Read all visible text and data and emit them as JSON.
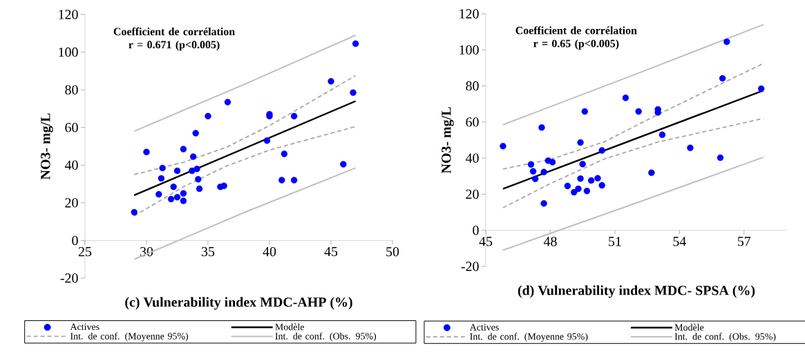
{
  "chart_data": [
    {
      "type": "scatter",
      "xlabel": "(c) Vulnerability index MDC-AHP (%)",
      "ylabel": "NO3- mg/L",
      "xlim": [
        25,
        50
      ],
      "xticks": [
        25,
        30,
        35,
        40,
        45,
        50
      ],
      "ylim": [
        -20,
        120
      ],
      "yticks": [
        -20,
        0,
        20,
        40,
        60,
        80,
        100,
        120
      ],
      "legend": "bottom",
      "annotations": [
        "**Coefficient de corrélation r = 0.671 (p<0.005)**"
      ],
      "series": [
        {
          "name": "Actives",
          "type": "scatter",
          "marker": "circle",
          "color": "#0000ff",
          "x": [
            29,
            30,
            31,
            31.2,
            31.3,
            32,
            32.2,
            32.5,
            32.5,
            33,
            33,
            33,
            33.7,
            33.8,
            34,
            34.1,
            34.2,
            34.3,
            35,
            36,
            36.3,
            36.6,
            39.8,
            40,
            40,
            41,
            41.2,
            42,
            42,
            45,
            46,
            46.8,
            47
          ],
          "values": [
            15,
            47,
            24.5,
            33,
            38.5,
            22,
            28.5,
            23,
            37,
            25,
            21,
            48.5,
            37,
            44.5,
            57,
            38,
            32.5,
            27.5,
            66,
            28.5,
            29,
            73.5,
            53,
            67,
            66,
            32,
            46,
            66,
            32,
            84.5,
            40.5,
            78.5,
            104.5
          ]
        },
        {
          "name": "Modèle",
          "type": "line",
          "marker": "none",
          "line_style": "solid",
          "color": "#000000",
          "x": [
            29,
            47
          ],
          "values": [
            24,
            74
          ]
        },
        {
          "name": "Int. de conf. (Moyenne 95%)",
          "type": "line",
          "marker": "none",
          "line_style": "dashed",
          "color": "#a6a6a6",
          "x": [
            29,
            33,
            36.5,
            40,
            47
          ],
          "values": [
            35,
            41.5,
            49.5,
            61,
            87.5
          ]
        },
        {
          "type": "line",
          "marker": "none",
          "line_style": "dashed",
          "color": "#a6a6a6",
          "x": [
            29,
            33,
            36.5,
            40,
            47
          ],
          "values": [
            13,
            28.5,
            39.5,
            48,
            60.5
          ]
        },
        {
          "name": "Int. de conf. (Obs. 95%)",
          "type": "line",
          "marker": "none",
          "line_style": "solid",
          "color": "#bfbfbf",
          "x": [
            29,
            38,
            47
          ],
          "values": [
            58,
            83,
            109
          ]
        },
        {
          "type": "line",
          "marker": "none",
          "line_style": "solid",
          "color": "#bfbfbf",
          "x": [
            29,
            38,
            47
          ],
          "values": [
            -10,
            15,
            38.5
          ]
        }
      ]
    },
    {
      "type": "scatter",
      "xlabel": "(d) Vulnerability index MDC- SPSA (%)",
      "ylabel": "NO3- mg/L",
      "xlim": [
        45,
        59
      ],
      "xticks": [
        45,
        48,
        51,
        54,
        57
      ],
      "ylim": [
        -20,
        120
      ],
      "yticks": [
        -20,
        0,
        20,
        40,
        60,
        80,
        100,
        120
      ],
      "legend": "bottom",
      "annotations": [
        "**Coefficient de corrélation r = 0.65 (p<0.005)**"
      ],
      "series": [
        {
          "name": "Actives",
          "type": "scatter",
          "marker": "circle",
          "color": "#0000ff",
          "x": [
            45.8,
            47.6,
            56.2,
            56,
            57.8,
            51.5,
            52.1,
            53,
            53,
            49.6,
            53.2,
            49.4,
            54.5,
            50.4,
            55.9,
            47.1,
            47.9,
            48.1,
            49.5,
            47.2,
            47.7,
            47.3,
            49.4,
            49.9,
            50.2,
            52.7,
            48.8,
            49.1,
            49.3,
            49.7,
            50.4,
            47.7
          ],
          "values": [
            46.7,
            57,
            104.5,
            84.2,
            78.5,
            73.4,
            65.9,
            67,
            65.3,
            65.9,
            53,
            48.7,
            45.7,
            44.3,
            40.2,
            36.5,
            38.6,
            37.8,
            36.7,
            32.7,
            32.3,
            28.5,
            28.7,
            27.6,
            28.9,
            31.9,
            24.6,
            21.1,
            23,
            21.8,
            24.9,
            14.9
          ]
        },
        {
          "name": "Modèle",
          "type": "line",
          "marker": "none",
          "line_style": "solid",
          "color": "#000000",
          "x": [
            45.8,
            57.9
          ],
          "values": [
            23,
            77.5
          ]
        },
        {
          "name": "Int. de conf. (Moyenne 95%)",
          "type": "line",
          "marker": "none",
          "line_style": "dashed",
          "color": "#a6a6a6",
          "x": [
            45.8,
            48,
            50.5,
            53,
            57.9
          ],
          "values": [
            34,
            39.3,
            49,
            64.2,
            92.5
          ]
        },
        {
          "type": "line",
          "marker": "none",
          "line_style": "dashed",
          "color": "#a6a6a6",
          "x": [
            45.8,
            48,
            50.5,
            53,
            57.9
          ],
          "values": [
            12.5,
            25.9,
            39.5,
            48.9,
            62
          ]
        },
        {
          "name": "Int. de conf. (Obs. 95%)",
          "type": "line",
          "marker": "none",
          "line_style": "solid",
          "color": "#bfbfbf",
          "x": [
            45.8,
            51.85,
            57.9
          ],
          "values": [
            58.5,
            86,
            114
          ]
        },
        {
          "type": "line",
          "marker": "none",
          "line_style": "solid",
          "color": "#bfbfbf",
          "x": [
            45.8,
            51.85,
            57.9
          ],
          "values": [
            -11,
            14.5,
            40.5
          ]
        }
      ]
    }
  ]
}
